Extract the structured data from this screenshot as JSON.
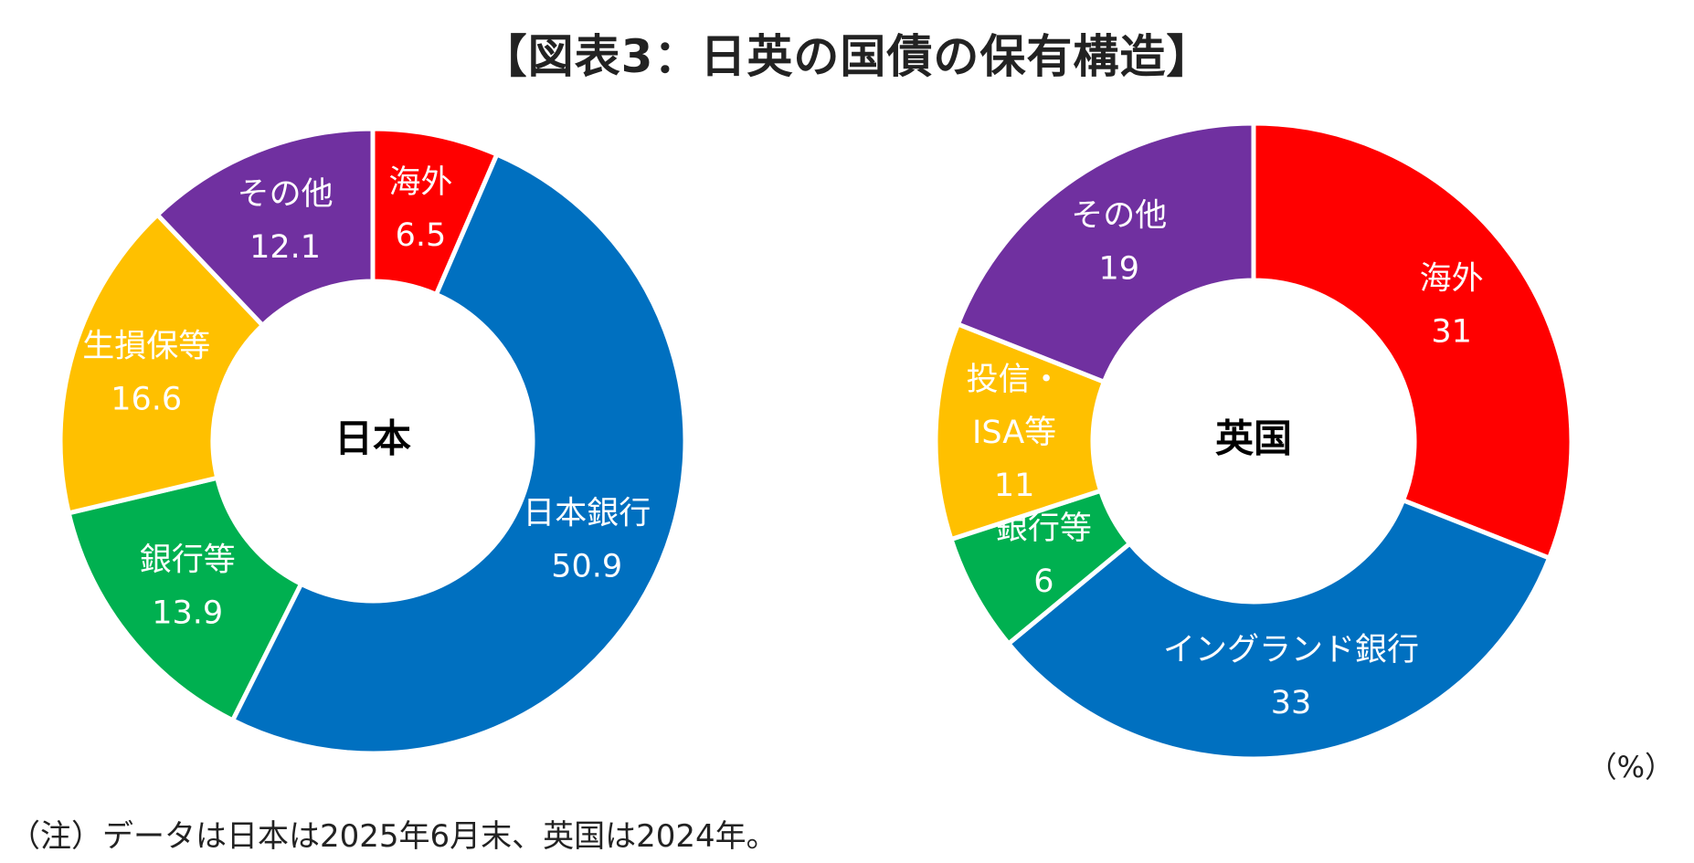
{
  "title": "【図表3：日英の国債の保有構造】",
  "unit": "（%）",
  "note": "（注）データは日本は2025年6月末、英国は2024年。",
  "chart_data": [
    {
      "type": "pie",
      "variant": "donut",
      "center_label": "日本",
      "slices": [
        {
          "label": [
            "海外"
          ],
          "value": 6.5,
          "display": "6.5",
          "color": "#FF0000"
        },
        {
          "label": [
            "日本銀行"
          ],
          "value": 50.9,
          "display": "50.9",
          "color": "#0070C0"
        },
        {
          "label": [
            "銀行等"
          ],
          "value": 13.9,
          "display": "13.9",
          "color": "#00B050"
        },
        {
          "label": [
            "生損保等"
          ],
          "value": 16.6,
          "display": "16.6",
          "color": "#FFC000"
        },
        {
          "label": [
            "その他"
          ],
          "value": 12.1,
          "display": "12.1",
          "color": "#7030A0"
        }
      ]
    },
    {
      "type": "pie",
      "variant": "donut",
      "center_label": "英国",
      "slices": [
        {
          "label": [
            "海外"
          ],
          "value": 31,
          "display": "31",
          "color": "#FF0000"
        },
        {
          "label": [
            "イングランド銀行"
          ],
          "value": 33,
          "display": "33",
          "color": "#0070C0"
        },
        {
          "label": [
            "銀行等"
          ],
          "value": 6,
          "display": "6",
          "color": "#00B050"
        },
        {
          "label": [
            "投信・",
            "ISA等"
          ],
          "value": 11,
          "display": "11",
          "color": "#FFC000"
        },
        {
          "label": [
            "その他"
          ],
          "value": 19,
          "display": "19",
          "color": "#7030A0"
        }
      ]
    }
  ]
}
